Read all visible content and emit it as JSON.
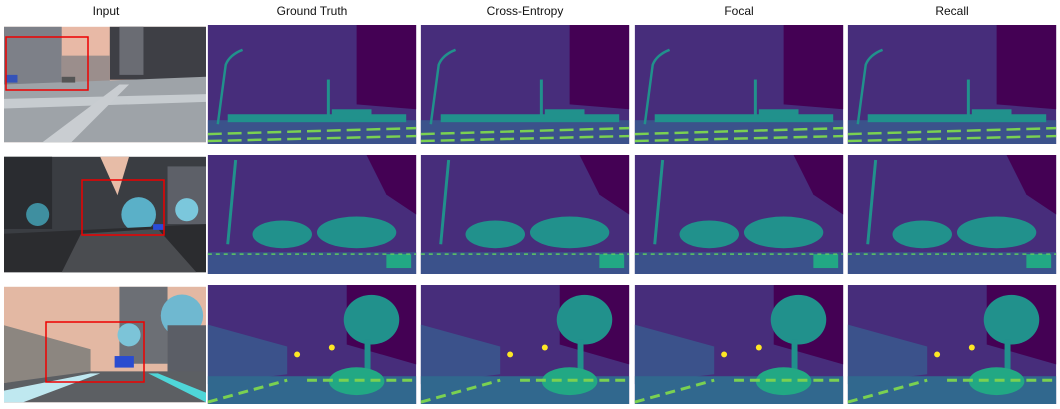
{
  "headers": [
    "Input",
    "Ground Truth",
    "Cross-Entropy",
    "Focal",
    "Recall"
  ]
}
